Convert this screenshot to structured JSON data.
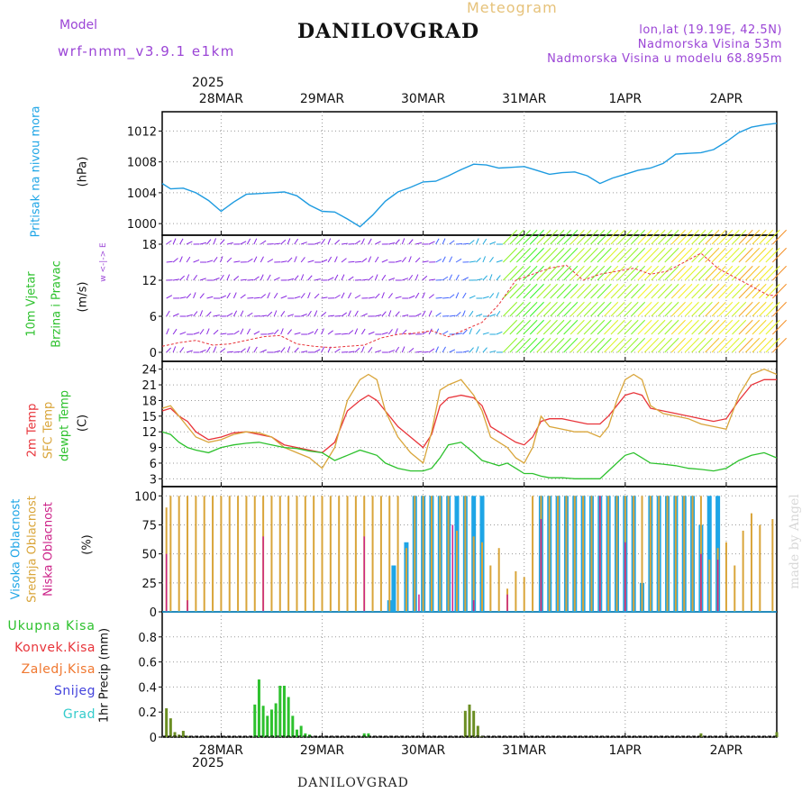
{
  "header": {
    "model_label": "Model",
    "model_name": "wrf-nmm_v3.9.1 e1km",
    "title": "DANILOVGRAD",
    "meteogram": "Meteogram",
    "lonlat": "lon,lat (19.19E, 42.5N)",
    "elevation": "Nadmorska Visina 53m",
    "model_elevation": "Nadmorska Visina u modelu 68.895m"
  },
  "footer": {
    "station": "DANILOVGRAD",
    "credit": "made by Angel"
  },
  "colors": {
    "pressure": "#1e9be0",
    "t2m": "#e8343a",
    "sfc": "#d9a53a",
    "dewpt": "#2dc12d",
    "high_cloud": "#1ea5e6",
    "mid_cloud": "#d9a53a",
    "low_cloud": "#cc2288",
    "total_precip": "#2dc12d",
    "conv_precip": "#e8343a",
    "freezing": "#f07830",
    "snow": "#4444dd",
    "hail": "#33cccc",
    "wind_label": "#6f2fd6"
  },
  "chart_data": {
    "type": "meteogram",
    "x_year": "2025",
    "x_ticks": [
      "28MAR",
      "29MAR",
      "30MAR",
      "31MAR",
      "1APR",
      "2APR"
    ],
    "x_range_hours": [
      -14,
      132
    ],
    "panels": [
      {
        "id": "pressure",
        "type": "line",
        "label": "Pritisak na nivou mora",
        "unit": "(hPa)",
        "ylim": [
          998.5,
          1014.5
        ],
        "yticks": [
          "1000",
          "1004",
          "1008",
          "1012"
        ],
        "series": [
          {
            "x": [
              -14,
              -12,
              -9,
              -6,
              -3,
              0,
              3,
              6,
              9,
              12,
              15,
              18,
              21,
              24,
              27,
              30,
              33,
              36,
              39,
              42,
              45,
              48,
              51,
              54,
              57,
              60,
              63,
              66,
              69,
              72,
              75,
              78,
              81,
              84,
              87,
              90,
              93,
              96,
              99,
              102,
              105,
              108,
              111,
              114,
              117,
              120,
              123,
              126,
              129,
              132
            ],
            "values": [
              1005.2,
              1004.5,
              1004.6,
              1004.0,
              1003.0,
              1001.6,
              1002.8,
              1003.8,
              1003.9,
              1004.0,
              1004.1,
              1003.6,
              1002.4,
              1001.6,
              1001.5,
              1000.6,
              999.6,
              1001.1,
              1002.9,
              1004.1,
              1004.7,
              1005.4,
              1005.5,
              1006.2,
              1007.0,
              1007.7,
              1007.6,
              1007.2,
              1007.3,
              1007.4,
              1006.9,
              1006.4,
              1006.6,
              1006.7,
              1006.2,
              1005.2,
              1005.9,
              1006.4,
              1006.9,
              1007.2,
              1007.8,
              1009.0,
              1009.1,
              1009.2,
              1009.6,
              1010.6,
              1011.8,
              1012.5,
              1012.8,
              1013.0
            ]
          }
        ]
      },
      {
        "id": "wind",
        "type": "wind_barbs",
        "label_1": "10m Vjetar",
        "label_2": "Brzina i Pravac",
        "unit": "(m/s)",
        "compass": "w <-|-> E",
        "ylim": [
          -1.5,
          19.5
        ],
        "yticks": [
          "0",
          "6",
          "12",
          "18"
        ],
        "speed_series": {
          "x": [
            -14,
            -10,
            -6,
            -2,
            2,
            6,
            10,
            14,
            18,
            22,
            26,
            30,
            34,
            38,
            42,
            46,
            50,
            54,
            58,
            62,
            66,
            70,
            74,
            78,
            82,
            86,
            90,
            94,
            98,
            102,
            106,
            110,
            114,
            118,
            122,
            126,
            130,
            132
          ],
          "values": [
            1.0,
            1.6,
            2.0,
            1.2,
            1.4,
            2.0,
            2.6,
            2.8,
            1.4,
            1.0,
            0.8,
            1.0,
            1.2,
            2.4,
            3.0,
            3.2,
            3.6,
            2.6,
            3.8,
            5.0,
            8.0,
            12.0,
            13.0,
            14.0,
            14.5,
            12.0,
            13.0,
            13.5,
            14.0,
            13.0,
            13.5,
            15.0,
            16.5,
            14.0,
            12.5,
            11.0,
            9.5,
            9.5
          ]
        }
      },
      {
        "id": "temperature",
        "type": "line",
        "label_1": "2m Temp",
        "label_2": "SFC Temp",
        "label_3": "dewpt Temp",
        "unit": "(C)",
        "ylim": [
          1.5,
          25.5
        ],
        "yticks": [
          "3",
          "6",
          "9",
          "12",
          "15",
          "18",
          "21",
          "24"
        ],
        "series": [
          {
            "name": "2m Temp",
            "x": [
              -14,
              -12,
              -10,
              -8,
              -6,
              -3,
              0,
              3,
              6,
              9,
              12,
              15,
              18,
              21,
              24,
              27,
              30,
              33,
              35,
              37,
              39,
              42,
              45,
              48,
              50,
              52,
              54,
              57,
              60,
              62,
              64,
              66,
              68,
              70,
              72,
              74,
              76,
              78,
              81,
              84,
              87,
              90,
              92,
              94,
              96,
              98,
              100,
              102,
              105,
              108,
              111,
              114,
              117,
              120,
              123,
              126,
              129,
              132
            ],
            "values": [
              16,
              16.5,
              15,
              14,
              12,
              10.5,
              11,
              11.8,
              12,
              11.5,
              11,
              9.5,
              9,
              8.5,
              8,
              10,
              16,
              18,
              19,
              18,
              16,
              13,
              11,
              9,
              11.5,
              17,
              18.5,
              19,
              18.5,
              17,
              13,
              12,
              11,
              10,
              9.5,
              11,
              14,
              14.5,
              14.5,
              14,
              13.5,
              13.5,
              15,
              17,
              19,
              19.5,
              19,
              16.5,
              16,
              15.5,
              15,
              14.5,
              14,
              14.5,
              18,
              21,
              22,
              22
            ]
          },
          {
            "name": "SFC Temp",
            "x": [
              -14,
              -12,
              -10,
              -8,
              -6,
              -3,
              0,
              3,
              6,
              9,
              12,
              15,
              18,
              21,
              24,
              27,
              30,
              33,
              35,
              37,
              39,
              42,
              45,
              48,
              50,
              52,
              54,
              57,
              60,
              62,
              64,
              66,
              68,
              70,
              72,
              74,
              76,
              78,
              81,
              84,
              87,
              90,
              92,
              94,
              96,
              98,
              100,
              102,
              105,
              108,
              111,
              114,
              117,
              120,
              123,
              126,
              129,
              132
            ],
            "values": [
              16.5,
              17,
              15,
              13,
              11,
              10,
              10.5,
              11.5,
              12,
              11.8,
              11,
              9,
              8,
              7,
              5,
              9,
              18,
              22,
              23,
              22,
              16,
              11,
              8,
              6,
              12,
              20,
              21,
              22,
              19,
              16,
              11,
              10,
              9,
              7,
              6,
              9,
              15,
              13,
              12.5,
              12,
              12,
              11,
              13,
              18,
              22,
              23,
              22,
              17,
              15.5,
              15,
              14.5,
              13.5,
              13,
              12.5,
              19,
              23,
              24,
              23
            ]
          },
          {
            "name": "dewpt Temp",
            "x": [
              -14,
              -12,
              -10,
              -8,
              -6,
              -3,
              0,
              3,
              6,
              9,
              12,
              15,
              18,
              21,
              24,
              27,
              30,
              33,
              35,
              37,
              39,
              42,
              45,
              48,
              50,
              52,
              54,
              57,
              60,
              62,
              64,
              66,
              68,
              70,
              72,
              74,
              76,
              78,
              81,
              84,
              87,
              90,
              92,
              94,
              96,
              98,
              100,
              102,
              105,
              108,
              111,
              114,
              117,
              120,
              123,
              126,
              129,
              132
            ],
            "values": [
              12,
              11.5,
              10,
              9,
              8.5,
              8,
              9,
              9.5,
              9.8,
              10,
              9.5,
              9,
              8.8,
              8.3,
              8,
              6.5,
              7.5,
              8.5,
              8,
              7.5,
              6,
              5,
              4.5,
              4.5,
              5,
              7,
              9.5,
              10,
              8,
              6.5,
              6,
              5.5,
              6,
              5,
              4,
              4,
              3.5,
              3.2,
              3.2,
              3,
              3,
              3,
              4.5,
              6,
              7.5,
              8,
              7,
              6,
              5.8,
              5.5,
              5,
              4.8,
              4.5,
              5,
              6.5,
              7.5,
              8,
              7
            ]
          }
        ]
      },
      {
        "id": "cloud",
        "type": "bar",
        "label_1": "Visoka Oblacnost",
        "label_2": "Srednja Oblacnost",
        "label_3": "Niska Oblacnost",
        "unit": "(%)",
        "ylim": [
          0,
          108
        ],
        "yticks": [
          "0",
          "25",
          "50",
          "75",
          "100"
        ],
        "series": [
          {
            "name": "Srednja Oblacnost",
            "x": [
              -13,
              -12,
              -10,
              -8,
              -6,
              -4,
              -2,
              0,
              2,
              4,
              6,
              8,
              10,
              12,
              14,
              16,
              18,
              20,
              22,
              24,
              26,
              28,
              30,
              32,
              34,
              36,
              38,
              40,
              42,
              44,
              46,
              48,
              50,
              52,
              54,
              56,
              58,
              60,
              62,
              64,
              66,
              68,
              70,
              72,
              74,
              76,
              78,
              80,
              82,
              84,
              86,
              88,
              90,
              92,
              94,
              96,
              98,
              100,
              102,
              104,
              106,
              108,
              110,
              112,
              114,
              116,
              118,
              120,
              122,
              124,
              126,
              128,
              131
            ],
            "values": [
              90,
              100,
              100,
              100,
              100,
              100,
              100,
              100,
              100,
              100,
              100,
              100,
              100,
              100,
              100,
              100,
              100,
              100,
              100,
              100,
              100,
              100,
              100,
              100,
              100,
              100,
              100,
              100,
              100,
              55,
              100,
              100,
              100,
              100,
              100,
              70,
              100,
              65,
              60,
              40,
              55,
              20,
              35,
              30,
              100,
              100,
              100,
              100,
              100,
              100,
              100,
              100,
              100,
              100,
              100,
              100,
              100,
              100,
              100,
              100,
              100,
              100,
              100,
              100,
              100,
              45,
              55,
              60,
              40,
              70,
              85,
              75,
              80
            ]
          },
          {
            "name": "Visoka Oblacnost",
            "x": [
              40,
              41,
              44,
              46,
              48,
              50,
              52,
              54,
              56,
              58,
              60,
              62,
              76,
              78,
              80,
              82,
              84,
              86,
              88,
              90,
              92,
              94,
              96,
              98,
              100,
              102,
              104,
              106,
              108,
              110,
              112,
              114,
              116,
              118
            ],
            "values": [
              10,
              40,
              60,
              100,
              100,
              100,
              100,
              100,
              100,
              100,
              100,
              100,
              100,
              100,
              100,
              100,
              100,
              100,
              100,
              100,
              100,
              100,
              100,
              100,
              25,
              100,
              100,
              100,
              100,
              100,
              100,
              75,
              100,
              100
            ]
          },
          {
            "name": "Niska Oblacnost",
            "x": [
              -13,
              -8,
              10,
              34,
              47,
              55,
              60,
              68,
              76,
              90,
              96,
              114,
              118
            ],
            "values": [
              50,
              10,
              65,
              65,
              15,
              75,
              10,
              15,
              80,
              100,
              60,
              50,
              45
            ]
          }
        ]
      },
      {
        "id": "precip",
        "type": "bar",
        "label_1": "Ukupna Kisa",
        "label_2": "Konvek.Kisa",
        "label_3": "Zaledj.Kisa",
        "label_4": "Snijeg",
        "label_5": "Grad",
        "unit": "1hr Precip (mm)",
        "ylim": [
          0,
          1.0
        ],
        "yticks": [
          "0",
          "0.2",
          "0.4",
          "0.6",
          "0.8"
        ],
        "series": [
          {
            "name": "Ukupna Kisa",
            "x": [
              -13,
              -12,
              -11,
              -10,
              -9,
              -8,
              8,
              9,
              10,
              11,
              12,
              13,
              14,
              15,
              16,
              17,
              18,
              19,
              20,
              21,
              34,
              35,
              58,
              59,
              60,
              61,
              62,
              114,
              132
            ],
            "values": [
              0.23,
              0.15,
              0.04,
              0.02,
              0.05,
              0.01,
              0.26,
              0.46,
              0.25,
              0.17,
              0.22,
              0.27,
              0.41,
              0.41,
              0.32,
              0.17,
              0.06,
              0.09,
              0.03,
              0.02,
              0.03,
              0.03,
              0.21,
              0.26,
              0.21,
              0.09,
              0.01,
              0.03,
              0.04
            ]
          }
        ]
      }
    ]
  }
}
